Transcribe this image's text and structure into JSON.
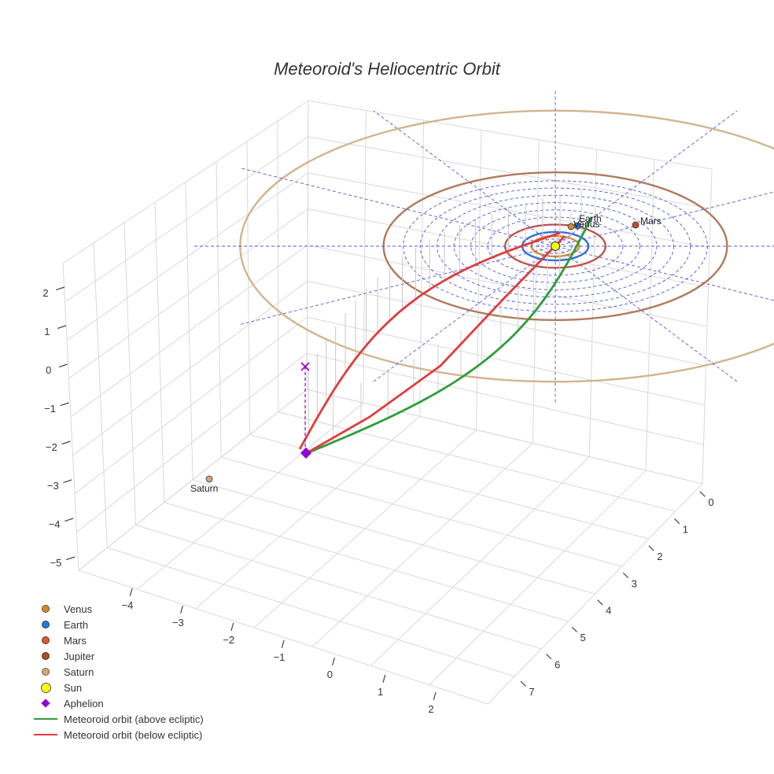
{
  "chart_data": {
    "type": "3d-orbit",
    "title": "Meteoroid's Heliocentric Orbit",
    "x_ticks": [
      "0",
      "1",
      "2",
      "3",
      "4",
      "5",
      "6",
      "7"
    ],
    "y_ticks": [
      "−4",
      "−3",
      "−2",
      "−1",
      "0",
      "1",
      "2"
    ],
    "z_ticks": [
      "2",
      "1",
      "0",
      "−1",
      "−2",
      "−3",
      "−4",
      "−5"
    ],
    "planets": [
      {
        "name": "Venus",
        "label": "Venus",
        "orbit_radius_au": 0.72,
        "color": "#d4892e"
      },
      {
        "name": "Earth",
        "label": "Earth",
        "orbit_radius_au": 1.0,
        "color": "#2a7ad4"
      },
      {
        "name": "Mars",
        "label": "Mars",
        "orbit_radius_au": 1.52,
        "color": "#d95a30"
      },
      {
        "name": "Jupiter",
        "label": "",
        "orbit_radius_au": 5.2,
        "color": "#b07a5c"
      },
      {
        "name": "Saturn",
        "label": "Saturn",
        "orbit_radius_au": 9.54,
        "color": "#d2b48c"
      }
    ],
    "series": [
      {
        "name": "Meteoroid orbit (above ecliptic)",
        "color": "#2e9e3a"
      },
      {
        "name": "Meteoroid orbit (below ecliptic)",
        "color": "#e03c3c"
      }
    ],
    "aphelion": {
      "label": "Aphelion",
      "color": "#9400d3"
    },
    "sun": {
      "label": "Sun",
      "color": "#ffff00"
    },
    "ecliptic_grid_color": "#5555dd",
    "legend_position": "bottom-left"
  },
  "legend": [
    {
      "label": "Venus",
      "kind": "dot",
      "color": "#d4892e"
    },
    {
      "label": "Earth",
      "kind": "dot",
      "color": "#2a7ad4"
    },
    {
      "label": "Mars",
      "kind": "dot",
      "color": "#d95a30"
    },
    {
      "label": "Jupiter",
      "kind": "dot",
      "color": "#a0522d"
    },
    {
      "label": "Saturn",
      "kind": "dot",
      "color": "#d2a679"
    },
    {
      "label": "Sun",
      "kind": "sun",
      "color": "#ffff00"
    },
    {
      "label": "Aphelion",
      "kind": "diamond",
      "color": "#9400d3"
    },
    {
      "label": "Meteoroid orbit (above ecliptic)",
      "kind": "line",
      "color": "#2e9e3a"
    },
    {
      "label": "Meteoroid orbit (below ecliptic)",
      "kind": "line",
      "color": "#e03c3c"
    }
  ]
}
